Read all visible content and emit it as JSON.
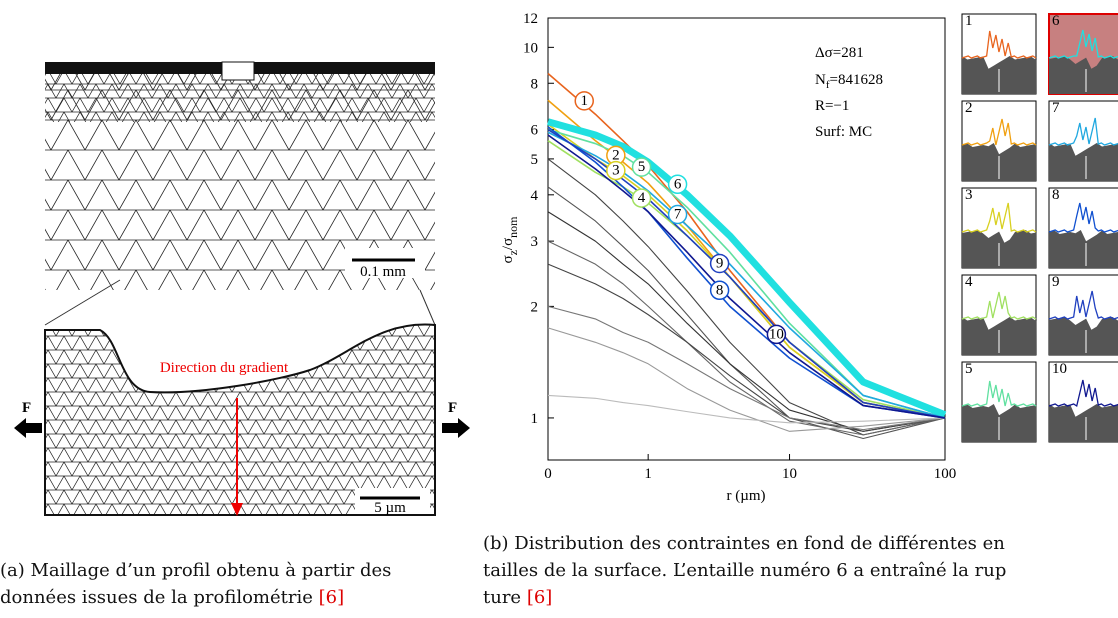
{
  "figure_a": {
    "scale_top": "0.1 mm",
    "scale_bottom": "5 µm",
    "gradient_label": "Direction du gradient",
    "force_left": "F",
    "force_right": "F"
  },
  "chart_data": {
    "type": "line",
    "xscale": "log",
    "yscale": "log",
    "x_label": "r (µm)",
    "y_label": {
      "main": "σ",
      "sub1": "z",
      "mid": "/σ",
      "sub2": "nom"
    },
    "annotations": {
      "delta_sigma": "Δσ=281",
      "nf_main": "N",
      "nf_sub": "f",
      "nf_value": "=841628",
      "ratio": "R=−1",
      "surface": "Surf: MC"
    },
    "xlim": [
      0,
      100
    ],
    "ylim": [
      0.77,
      12
    ],
    "xticks": [
      0,
      1,
      10,
      100
    ],
    "yticks": [
      1,
      2,
      3,
      4,
      5,
      6,
      8,
      10,
      12
    ],
    "x": [
      0,
      0.3,
      0.6,
      1,
      2,
      4,
      10,
      30,
      100
    ],
    "series": [
      {
        "label": "1",
        "color": "#e8641e",
        "values": [
          8.5,
          6.6,
          5.6,
          4.8,
          3.6,
          2.5,
          1.6,
          1.1,
          1.0
        ]
      },
      {
        "label": "2",
        "color": "#f0a010",
        "values": [
          7.2,
          5.6,
          4.9,
          4.3,
          3.3,
          2.4,
          1.55,
          1.1,
          1.0
        ]
      },
      {
        "label": "3",
        "color": "#d8d020",
        "values": [
          6.2,
          5.0,
          4.5,
          4.0,
          3.2,
          2.4,
          1.55,
          1.1,
          1.0
        ]
      },
      {
        "label": "4",
        "color": "#a0e060",
        "values": [
          5.6,
          4.6,
          4.2,
          3.8,
          3.1,
          2.4,
          1.6,
          1.12,
          1.0
        ]
      },
      {
        "label": "5",
        "color": "#60e0a0",
        "values": [
          6.0,
          5.5,
          5.1,
          4.6,
          3.7,
          2.8,
          1.8,
          1.15,
          1.0
        ]
      },
      {
        "label": "6",
        "color": "#20e0e0",
        "values": [
          6.3,
          5.8,
          5.4,
          4.9,
          4.0,
          3.1,
          2.05,
          1.25,
          1.02
        ]
      },
      {
        "label": "7",
        "color": "#20a8e0",
        "values": [
          5.9,
          5.1,
          4.6,
          4.1,
          3.3,
          2.6,
          1.75,
          1.15,
          1.0
        ]
      },
      {
        "label": "8",
        "color": "#1050d0",
        "values": [
          6.1,
          4.9,
          4.2,
          3.6,
          2.7,
          2.0,
          1.45,
          1.08,
          1.0
        ]
      },
      {
        "label": "9",
        "color": "#2040c0",
        "values": [
          6.0,
          5.0,
          4.4,
          3.9,
          3.1,
          2.4,
          1.6,
          1.1,
          1.0
        ]
      },
      {
        "label": "10",
        "color": "#101890",
        "values": [
          5.8,
          4.7,
          4.1,
          3.6,
          2.8,
          2.1,
          1.5,
          1.08,
          1.0
        ]
      },
      {
        "color": "#444444",
        "values": [
          5.0,
          4.0,
          3.4,
          2.9,
          2.2,
          1.6,
          1.1,
          0.9,
          1.0
        ]
      },
      {
        "color": "#555555",
        "values": [
          4.2,
          3.4,
          2.9,
          2.5,
          1.9,
          1.4,
          1.0,
          0.88,
          1.0
        ]
      },
      {
        "color": "#333333",
        "values": [
          3.6,
          3.0,
          2.6,
          2.3,
          1.8,
          1.4,
          1.05,
          0.92,
          1.0
        ]
      },
      {
        "color": "#666666",
        "values": [
          3.0,
          2.6,
          2.3,
          2.0,
          1.6,
          1.25,
          0.98,
          0.9,
          1.0
        ]
      },
      {
        "color": "#444444",
        "values": [
          2.6,
          2.3,
          2.1,
          1.9,
          1.6,
          1.3,
          1.0,
          0.92,
          1.0
        ]
      },
      {
        "color": "#777777",
        "values": [
          2.0,
          1.85,
          1.7,
          1.6,
          1.4,
          1.2,
          1.0,
          0.93,
          1.0
        ]
      },
      {
        "color": "#999999",
        "values": [
          1.75,
          1.6,
          1.5,
          1.4,
          1.2,
          1.05,
          0.92,
          0.95,
          1.0
        ]
      },
      {
        "color": "#bbbbbb",
        "values": [
          1.15,
          1.13,
          1.1,
          1.08,
          1.04,
          1.0,
          0.97,
          0.98,
          1.0
        ]
      }
    ],
    "thumbnails": [
      "1",
      "2",
      "3",
      "4",
      "5",
      "6",
      "7",
      "8",
      "9",
      "10"
    ]
  },
  "caption_a": {
    "lines": [
      "(a) Maillage d’un profil obtenu à partir des",
      "données issues de la profilométrie "
    ],
    "ref": "[6]"
  },
  "caption_b": {
    "lines": [
      "(b) Distribution des contraintes en fond de différentes en",
      "tailles de la surface. L’entaille numéro 6 a entraîné la rup",
      "ture "
    ],
    "ref": "[6]"
  }
}
